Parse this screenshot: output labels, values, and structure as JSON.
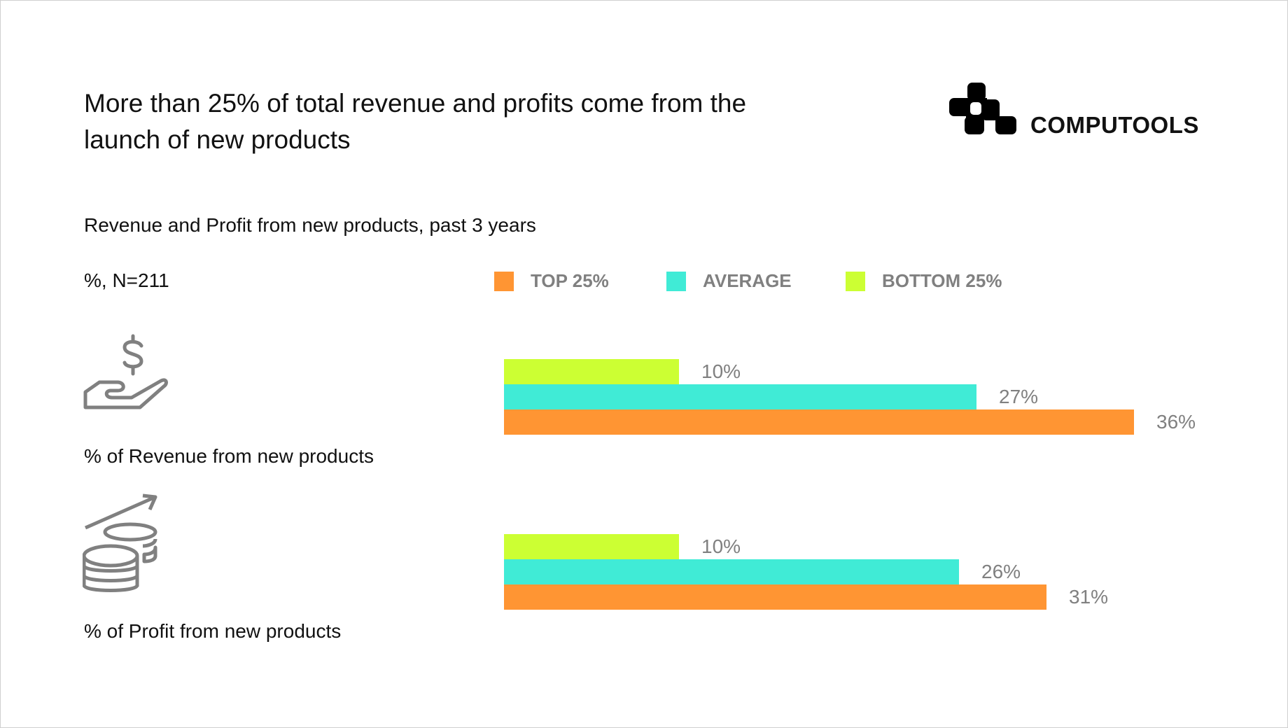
{
  "title": "More than 25% of total revenue and profits come from the launch of new products",
  "logo": {
    "text": "COMPUTOOLS"
  },
  "chart_data": {
    "type": "bar",
    "orientation": "horizontal",
    "title": "Revenue and Profit from new products, past 3 years",
    "unit_note": "%, N=211",
    "categories": [
      "% of Revenue from new products",
      "% of Profit from new products"
    ],
    "category_icons": [
      "dollar-hand-icon",
      "coins-growth-icon"
    ],
    "series": [
      {
        "name": "BOTTOM 25%",
        "color": "#CCFF33",
        "values": [
          10,
          10
        ]
      },
      {
        "name": "AVERAGE",
        "color": "#40EBD6",
        "values": [
          27,
          26
        ]
      },
      {
        "name": "TOP 25%",
        "color": "#FF9533",
        "values": [
          36,
          31
        ]
      }
    ],
    "legend_order": [
      "TOP 25%",
      "AVERAGE",
      "BOTTOM 25%"
    ],
    "legend_placement": "top",
    "value_labels": [
      [
        "10%",
        "27%",
        "36%"
      ],
      [
        "10%",
        "26%",
        "31%"
      ]
    ],
    "grid": false
  }
}
